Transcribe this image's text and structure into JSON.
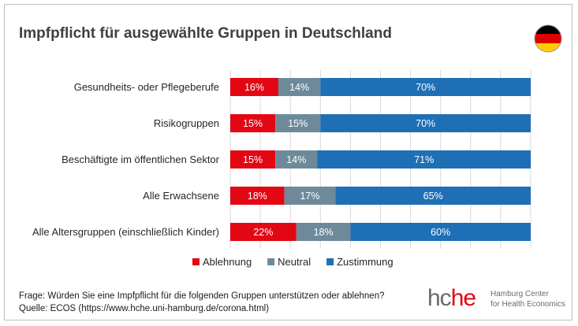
{
  "chart_data": {
    "type": "bar",
    "orientation": "horizontal",
    "stacked": true,
    "title": "Impfpflicht für ausgewählte Gruppen in Deutschland",
    "categories": [
      "Gesundheits- oder Pflegeberufe",
      "Risikogruppen",
      "Beschäftigte im öffentlichen Sektor",
      "Alle Erwachsene",
      "Alle Altersgruppen (einschließlich Kinder)"
    ],
    "series": [
      {
        "name": "Ablehnung",
        "color": "#e30613",
        "values": [
          16,
          15,
          15,
          18,
          22
        ]
      },
      {
        "name": "Neutral",
        "color": "#6e8a9a",
        "values": [
          14,
          15,
          14,
          17,
          18
        ]
      },
      {
        "name": "Zustimmung",
        "color": "#1e6fb5",
        "values": [
          70,
          70,
          71,
          65,
          60
        ]
      }
    ],
    "value_suffix": "%",
    "xlim": [
      0,
      100
    ],
    "grid": true,
    "legend": "bottom"
  },
  "footer": {
    "question": "Frage: Würden Sie eine Impfpflicht für die folgenden Gruppen unterstützen oder ablehnen?",
    "source": "Quelle: ECOS (https://www.hche.uni-hamburg.de/corona.html)"
  },
  "logo": {
    "mark_left": "hc",
    "mark_right": "he",
    "line1": "Hamburg Center",
    "line2": "for Health Economics"
  },
  "flag_colors": [
    "#000000",
    "#dd0000",
    "#ffce00"
  ]
}
